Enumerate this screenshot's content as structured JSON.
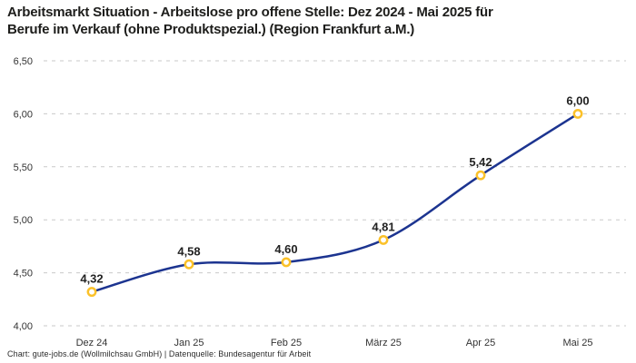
{
  "title": {
    "text": "Arbeitsmarkt Situation - Arbeitslose pro offene Stelle: Dez 2024 - Mai 2025 für Berufe im Verkauf (ohne Produktspezial.) (Region Frankfurt a.M.)",
    "lines": [
      "Arbeitsmarkt Situation - Arbeitslose pro offene Stelle: Dez 2024 - Mai 2025 für",
      "Berufe im Verkauf (ohne Produktspezial.) (Region Frankfurt a.M.)"
    ]
  },
  "footer": {
    "text": "Chart: gute-jobs.de (Wollmilchsau GmbH) | Datenquelle: Bundesagentur für Arbeit"
  },
  "chart_data": {
    "type": "line",
    "title": "Arbeitsmarkt Situation - Arbeitslose pro offene Stelle: Dez 2024 - Mai 2025 für Berufe im Verkauf (ohne Produktspezial.) (Region Frankfurt a.M.)",
    "categories": [
      "Dez 24",
      "Jan 25",
      "Feb 25",
      "März 25",
      "Apr 25",
      "Mai 25"
    ],
    "values": [
      4.32,
      4.58,
      4.6,
      4.81,
      5.42,
      6.0
    ],
    "value_labels": [
      "4,32",
      "4,58",
      "4,60",
      "4,81",
      "5,42",
      "6,00"
    ],
    "y_ticks": [
      4.0,
      4.5,
      5.0,
      5.5,
      6.0,
      6.5
    ],
    "y_tick_labels": [
      "4,00",
      "4,50",
      "5,00",
      "5,50",
      "6,00",
      "6,50"
    ],
    "ylim": [
      4.0,
      6.5
    ],
    "xlabel": "",
    "ylabel": "",
    "grid": "horizontal-dashed",
    "legend": "none",
    "line_color": "#1c3490",
    "marker_stroke": "#fbc129",
    "marker_fill": "#ffffff",
    "grid_color": "#c9c9c9",
    "smooth": true
  }
}
